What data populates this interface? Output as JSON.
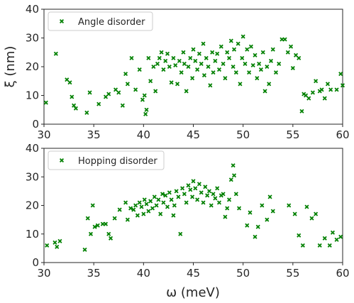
{
  "chart_data": [
    {
      "type": "scatter",
      "xlabel": "",
      "ylabel": "ξ (nm)",
      "xlim": [
        30,
        60
      ],
      "ylim": [
        0,
        40
      ],
      "xticks": [
        "30",
        "35",
        "40",
        "45",
        "50",
        "55",
        "60"
      ],
      "yticks": [
        "0",
        "10",
        "20",
        "30",
        "40"
      ],
      "legend_position": "top-left",
      "grid": false,
      "series": [
        {
          "name": "Angle disorder",
          "color": "#008000",
          "marker": "x",
          "points": [
            [
              30.2,
              7.5
            ],
            [
              31.2,
              24.5
            ],
            [
              32.3,
              15.5
            ],
            [
              32.6,
              14.5
            ],
            [
              32.8,
              9.5
            ],
            [
              33.0,
              6.5
            ],
            [
              33.2,
              5.5
            ],
            [
              34.3,
              4
            ],
            [
              34.6,
              11
            ],
            [
              35.5,
              7
            ],
            [
              36.2,
              9.5
            ],
            [
              36.5,
              10.5
            ],
            [
              37.2,
              12
            ],
            [
              37.5,
              11
            ],
            [
              37.9,
              6.5
            ],
            [
              38.2,
              17.5
            ],
            [
              38.4,
              14
            ],
            [
              38.8,
              23
            ],
            [
              39.2,
              12
            ],
            [
              39.6,
              19
            ],
            [
              39.9,
              8.5
            ],
            [
              40.1,
              10
            ],
            [
              40.2,
              3.5
            ],
            [
              40.3,
              5
            ],
            [
              40.5,
              23
            ],
            [
              40.7,
              15
            ],
            [
              41.0,
              20
            ],
            [
              41.2,
              11.5
            ],
            [
              41.4,
              21
            ],
            [
              41.6,
              23
            ],
            [
              41.8,
              25
            ],
            [
              42.0,
              19
            ],
            [
              42.2,
              22
            ],
            [
              42.4,
              24.5
            ],
            [
              42.6,
              20
            ],
            [
              42.8,
              14.5
            ],
            [
              43.0,
              23
            ],
            [
              43.2,
              20.5
            ],
            [
              43.4,
              14
            ],
            [
              43.6,
              22
            ],
            [
              43.8,
              18
            ],
            [
              44.0,
              25
            ],
            [
              44.1,
              21
            ],
            [
              44.3,
              11.5
            ],
            [
              44.5,
              20
            ],
            [
              44.7,
              23
            ],
            [
              44.9,
              16
            ],
            [
              45.0,
              26
            ],
            [
              45.2,
              22
            ],
            [
              45.4,
              19
            ],
            [
              45.6,
              24.5
            ],
            [
              45.8,
              21
            ],
            [
              46.0,
              28
            ],
            [
              46.1,
              17
            ],
            [
              46.3,
              23
            ],
            [
              46.5,
              20
            ],
            [
              46.7,
              13.5
            ],
            [
              46.9,
              25
            ],
            [
              47.0,
              18
            ],
            [
              47.2,
              22
            ],
            [
              47.4,
              24.5
            ],
            [
              47.6,
              19
            ],
            [
              47.8,
              27
            ],
            [
              48.0,
              21
            ],
            [
              48.2,
              16
            ],
            [
              48.4,
              25
            ],
            [
              48.6,
              23
            ],
            [
              48.8,
              29
            ],
            [
              49.0,
              20
            ],
            [
              49.1,
              26
            ],
            [
              49.3,
              18
            ],
            [
              49.5,
              28
            ],
            [
              49.7,
              14
            ],
            [
              49.9,
              23
            ],
            [
              50.0,
              30.5
            ],
            [
              50.2,
              21
            ],
            [
              50.4,
              26
            ],
            [
              50.6,
              18
            ],
            [
              50.8,
              27
            ],
            [
              51.0,
              20.5
            ],
            [
              51.2,
              24
            ],
            [
              51.4,
              16
            ],
            [
              51.6,
              21
            ],
            [
              51.8,
              19
            ],
            [
              52.0,
              25
            ],
            [
              52.2,
              11.5
            ],
            [
              52.4,
              20
            ],
            [
              52.6,
              14
            ],
            [
              52.8,
              22
            ],
            [
              53.0,
              26
            ],
            [
              53.3,
              18
            ],
            [
              53.6,
              21
            ],
            [
              53.9,
              29.5
            ],
            [
              54.2,
              29.5
            ],
            [
              54.5,
              25
            ],
            [
              54.8,
              27
            ],
            [
              55.0,
              19.5
            ],
            [
              55.3,
              24
            ],
            [
              55.6,
              23
            ],
            [
              55.9,
              4.5
            ],
            [
              56.1,
              10.5
            ],
            [
              56.3,
              10
            ],
            [
              56.6,
              9
            ],
            [
              57.0,
              11
            ],
            [
              57.3,
              15
            ],
            [
              57.7,
              11.5
            ],
            [
              57.9,
              12
            ],
            [
              58.2,
              9
            ],
            [
              58.5,
              14
            ],
            [
              58.8,
              12
            ],
            [
              59.4,
              12
            ],
            [
              59.8,
              17.5
            ],
            [
              60.0,
              13.5
            ]
          ]
        }
      ]
    },
    {
      "type": "scatter",
      "xlabel": "ω (meV)",
      "ylabel": "",
      "xlim": [
        30,
        60
      ],
      "ylim": [
        0,
        40
      ],
      "xticks": [
        "30",
        "35",
        "40",
        "45",
        "50",
        "55",
        "60"
      ],
      "yticks": [
        "0",
        "10",
        "20",
        "30",
        "40"
      ],
      "legend_position": "top-left",
      "grid": false,
      "series": [
        {
          "name": "Hopping disorder",
          "color": "#008000",
          "marker": "x",
          "points": [
            [
              30.3,
              6
            ],
            [
              31.1,
              7
            ],
            [
              31.3,
              5.5
            ],
            [
              31.6,
              7.5
            ],
            [
              34.1,
              4.5
            ],
            [
              34.4,
              15.5
            ],
            [
              34.7,
              10
            ],
            [
              34.9,
              20
            ],
            [
              35.1,
              12.5
            ],
            [
              35.4,
              13
            ],
            [
              35.9,
              13.5
            ],
            [
              36.2,
              13.5
            ],
            [
              36.5,
              10
            ],
            [
              36.7,
              8.5
            ],
            [
              37.1,
              15.5
            ],
            [
              37.6,
              18.5
            ],
            [
              38.2,
              21
            ],
            [
              38.4,
              15
            ],
            [
              38.7,
              19
            ],
            [
              39.0,
              18.5
            ],
            [
              39.2,
              20
            ],
            [
              39.4,
              16.5
            ],
            [
              39.6,
              21
            ],
            [
              39.8,
              19.5
            ],
            [
              40.0,
              17
            ],
            [
              40.1,
              22
            ],
            [
              40.3,
              20.5
            ],
            [
              40.5,
              18
            ],
            [
              40.7,
              21.5
            ],
            [
              40.9,
              19
            ],
            [
              41.1,
              23
            ],
            [
              41.3,
              20
            ],
            [
              41.5,
              22
            ],
            [
              41.7,
              17
            ],
            [
              41.9,
              24
            ],
            [
              42.0,
              21
            ],
            [
              42.2,
              23.5
            ],
            [
              42.4,
              19.5
            ],
            [
              42.6,
              24.5
            ],
            [
              42.8,
              22
            ],
            [
              43.0,
              16.5
            ],
            [
              43.1,
              20
            ],
            [
              43.3,
              25
            ],
            [
              43.5,
              23
            ],
            [
              43.7,
              10
            ],
            [
              43.9,
              26
            ],
            [
              44.1,
              24
            ],
            [
              44.3,
              21
            ],
            [
              44.5,
              27
            ],
            [
              44.7,
              25.5
            ],
            [
              44.9,
              23
            ],
            [
              45.0,
              28.5
            ],
            [
              45.2,
              26
            ],
            [
              45.4,
              22
            ],
            [
              45.6,
              27.5
            ],
            [
              45.8,
              24.5
            ],
            [
              46.0,
              21
            ],
            [
              46.2,
              26.5
            ],
            [
              46.4,
              23.5
            ],
            [
              46.6,
              25
            ],
            [
              46.8,
              20
            ],
            [
              47.0,
              24
            ],
            [
              47.2,
              22.5
            ],
            [
              47.4,
              26
            ],
            [
              47.6,
              21
            ],
            [
              47.8,
              23.5
            ],
            [
              48.0,
              24
            ],
            [
              48.2,
              16
            ],
            [
              48.4,
              19
            ],
            [
              48.6,
              22
            ],
            [
              48.8,
              29
            ],
            [
              49.0,
              34
            ],
            [
              49.1,
              30.5
            ],
            [
              49.3,
              24
            ],
            [
              49.6,
              19
            ],
            [
              50.4,
              13
            ],
            [
              50.7,
              17.5
            ],
            [
              51.2,
              9
            ],
            [
              51.5,
              12.5
            ],
            [
              51.9,
              20
            ],
            [
              52.4,
              15
            ],
            [
              52.7,
              23
            ],
            [
              53.0,
              18
            ],
            [
              54.6,
              20
            ],
            [
              55.2,
              17
            ],
            [
              55.6,
              9.5
            ],
            [
              56.0,
              6
            ],
            [
              56.4,
              19.5
            ],
            [
              56.9,
              15.5
            ],
            [
              57.3,
              17
            ],
            [
              57.7,
              6
            ],
            [
              58.2,
              8.5
            ],
            [
              58.7,
              6
            ],
            [
              59.0,
              10.5
            ],
            [
              59.4,
              8
            ],
            [
              59.8,
              9
            ]
          ]
        }
      ]
    }
  ]
}
